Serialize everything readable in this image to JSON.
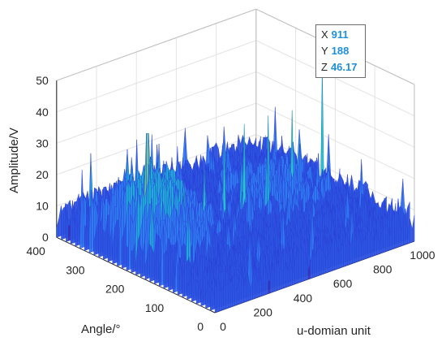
{
  "chart_data": {
    "type": "surface3d",
    "xlabel": "u-domian unit",
    "ylabel": "Angle/°",
    "zlabel": "Amplitude/V",
    "xlim": [
      0,
      1000
    ],
    "ylim": [
      0,
      400
    ],
    "zlim": [
      0,
      50
    ],
    "xticks": [
      "0",
      "200",
      "400",
      "600",
      "800",
      "1000"
    ],
    "yticks": [
      "0",
      "100",
      "200",
      "300",
      "400"
    ],
    "zticks": [
      "0",
      "10",
      "20",
      "30",
      "40",
      "50"
    ],
    "colormap": [
      "#3b2fb0",
      "#2c55e0",
      "#2f7cf0",
      "#20b0d8",
      "#60c890",
      "#e8d040"
    ],
    "grid": true,
    "peaks": [
      {
        "x": 911,
        "y": 188,
        "z": 46.17
      },
      {
        "x": 760,
        "y": 188,
        "z": 36
      },
      {
        "x": 640,
        "y": 188,
        "z": 37
      },
      {
        "x": 520,
        "y": 188,
        "z": 37
      },
      {
        "x": 420,
        "y": 188,
        "z": 33
      },
      {
        "x": 320,
        "y": 188,
        "z": 27
      },
      {
        "x": 220,
        "y": 188,
        "z": 22
      },
      {
        "x": 120,
        "y": 188,
        "z": 15
      }
    ],
    "datatip": {
      "x": 911,
      "y": 188,
      "z": 46.17
    }
  },
  "datatip_text": {
    "x_label": "X",
    "x_value": "911",
    "y_label": "Y",
    "y_value": "188",
    "z_label": "Z",
    "z_value": "46.17"
  }
}
